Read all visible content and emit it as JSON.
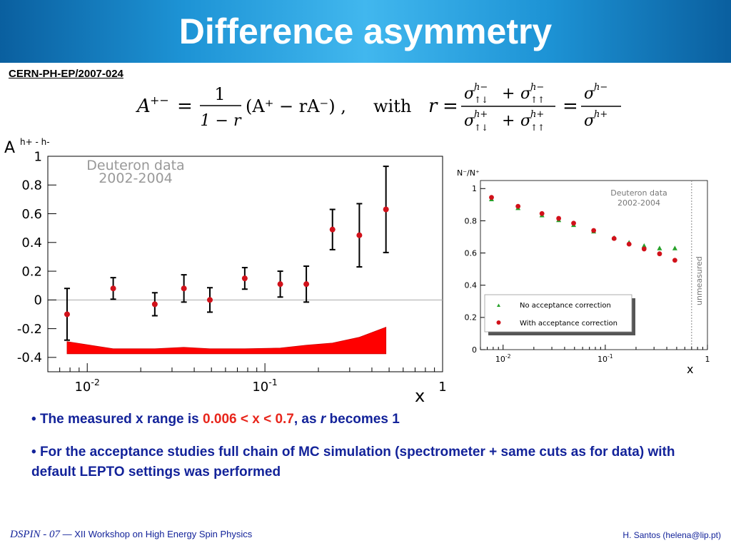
{
  "slide": {
    "title": "Difference asymmetry",
    "reference": "CERN-PH-EP/2007-024"
  },
  "formula": {
    "lhs": "A",
    "lhs_sup": "+−",
    "eq": "=",
    "frac_num": "1",
    "frac_den": "1 − r",
    "paren": "(A⁺ − rA⁻) ,",
    "with": "with",
    "r": "r",
    "sigma": "σ",
    "sup_minus": "h−",
    "sup_plus": "h+",
    "sub_anti": "↑↓",
    "sub_para": "↑↑",
    "plus": "+"
  },
  "bullets": {
    "b1_a": "The measured x range is ",
    "b1_b": "0.006 < x < 0.7",
    "b1_c": ", as ",
    "b1_d": "r",
    "b1_e": " becomes 1",
    "b2": "For the acceptance studies full chain of MC simulation (spectrometer + same cuts as for data) with default LEPTO settings was performed"
  },
  "footer": {
    "conf": "DSPIN - 07",
    "dash": "—",
    "event": "XII Workshop on High Energy Spin Physics",
    "author": "H. Santos  (helena@lip.pt)"
  },
  "colors": {
    "header_mid": "#41b7ee",
    "header_edge": "#0a5f9f",
    "text_blue": "#13239a",
    "highlight_red": "#e8261c",
    "marker_red": "#d1111a",
    "marker_green": "#27a12a",
    "band_red": "#ff0000"
  },
  "chart_data": [
    {
      "type": "scatter",
      "title": "",
      "annotation": [
        "Deuteron data",
        "2002-2004"
      ],
      "ylabel": "A",
      "ylabel_sup": "h+ - h-",
      "xlabel": "x",
      "xscale": "log",
      "xlim": [
        0.006,
        1
      ],
      "ylim": [
        -0.5,
        1
      ],
      "xticks": [
        {
          "value": 0.01,
          "base": "10",
          "exp": "-2"
        },
        {
          "value": 0.1,
          "base": "10",
          "exp": "-1"
        },
        {
          "value": 1,
          "base": "1",
          "exp": ""
        }
      ],
      "yticks": [
        {
          "value": 1,
          "label": "1"
        },
        {
          "value": 0.8,
          "label": "0.8"
        },
        {
          "value": 0.6,
          "label": "0.6"
        },
        {
          "value": 0.4,
          "label": "0.4"
        },
        {
          "value": 0.2,
          "label": "0.2"
        },
        {
          "value": 0,
          "label": "0"
        },
        {
          "value": -0.2,
          "label": "-0.2"
        },
        {
          "value": -0.4,
          "label": "-0.4"
        }
      ],
      "grid": false,
      "zero_line": true,
      "x": [
        0.0077,
        0.014,
        0.024,
        0.035,
        0.049,
        0.077,
        0.122,
        0.171,
        0.24,
        0.34,
        0.48
      ],
      "y": [
        -0.1,
        0.08,
        -0.03,
        0.08,
        0.0,
        0.15,
        0.11,
        0.11,
        0.49,
        0.45,
        0.63
      ],
      "yerr": [
        0.18,
        0.075,
        0.08,
        0.095,
        0.085,
        0.075,
        0.09,
        0.125,
        0.14,
        0.22,
        0.3
      ],
      "systematic_band": {
        "x": [
          0.0077,
          0.014,
          0.024,
          0.035,
          0.049,
          0.077,
          0.122,
          0.171,
          0.24,
          0.34,
          0.48
        ],
        "y": [
          -0.29,
          -0.34,
          -0.34,
          -0.33,
          -0.34,
          -0.34,
          -0.335,
          -0.315,
          -0.3,
          -0.26,
          -0.19
        ],
        "baseline": -0.375
      }
    },
    {
      "type": "scatter",
      "title": "",
      "annotation": [
        "Deuteron data",
        "2002-2004"
      ],
      "ylabel": "N⁻/N⁺",
      "xlabel": "x",
      "xscale": "log",
      "xlim": [
        0.006,
        1
      ],
      "ylim": [
        0,
        1.05
      ],
      "xticks": [
        {
          "value": 0.01,
          "base": "10",
          "exp": "-2"
        },
        {
          "value": 0.1,
          "base": "10",
          "exp": "-1"
        },
        {
          "value": 1,
          "base": "1",
          "exp": ""
        }
      ],
      "yticks": [
        {
          "value": 1,
          "label": "1"
        },
        {
          "value": 0.8,
          "label": "0.8"
        },
        {
          "value": 0.6,
          "label": "0.6"
        },
        {
          "value": 0.4,
          "label": "0.4"
        },
        {
          "value": 0.2,
          "label": "0.2"
        },
        {
          "value": 0,
          "label": "0"
        }
      ],
      "grid": false,
      "boundary_x": 0.7,
      "boundary_label": "unmeasured",
      "legend_position": "bottom-left",
      "series": [
        {
          "name": "No acceptance correction",
          "marker": "triangle",
          "color": "#27a12a",
          "x": [
            0.0077,
            0.014,
            0.024,
            0.035,
            0.049,
            0.077,
            0.122,
            0.171,
            0.24,
            0.34,
            0.48
          ],
          "y": [
            0.935,
            0.88,
            0.835,
            0.805,
            0.775,
            0.735,
            0.695,
            0.665,
            0.645,
            0.63,
            0.63
          ]
        },
        {
          "name": "With acceptance correction",
          "marker": "circle",
          "color": "#d1111a",
          "x": [
            0.0077,
            0.014,
            0.024,
            0.035,
            0.049,
            0.077,
            0.122,
            0.171,
            0.24,
            0.34,
            0.48
          ],
          "y": [
            0.945,
            0.89,
            0.845,
            0.815,
            0.785,
            0.74,
            0.69,
            0.655,
            0.625,
            0.595,
            0.555
          ]
        }
      ]
    }
  ]
}
